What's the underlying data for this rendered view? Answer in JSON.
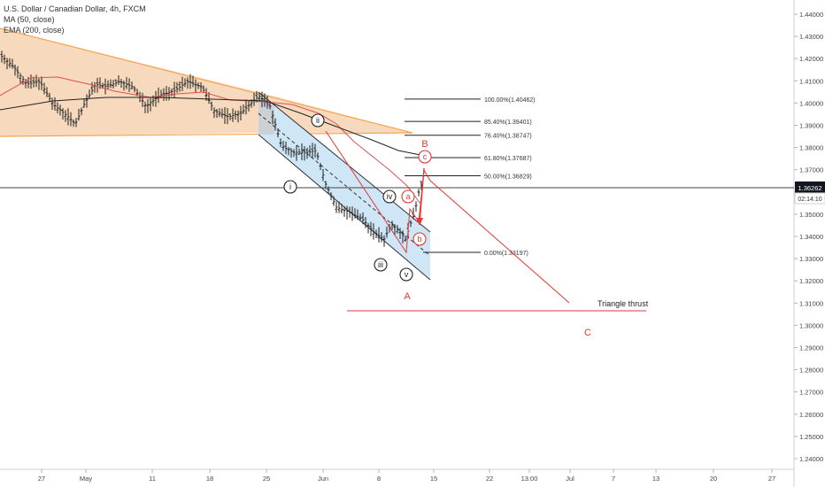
{
  "legend": {
    "symbol": "U.S. Dollar / Canadian Dollar, 4h, FXCM",
    "ma": "MA (50, close)",
    "ema": "EMA (200, close)"
  },
  "chart_data": {
    "type": "candlestick",
    "x_ticks": [
      "27",
      "May",
      "11",
      "18",
      "25",
      "Jun",
      "8",
      "15",
      "22",
      "13:00",
      "Jul",
      "7",
      "13",
      "20",
      "27"
    ],
    "y_ticks": [
      "1.44000",
      "1.43000",
      "1.42000",
      "1.41000",
      "1.40000",
      "1.39000",
      "1.38000",
      "1.37000",
      "1.36000",
      "1.35000",
      "1.34000",
      "1.33000",
      "1.32000",
      "1.31000",
      "1.30000",
      "1.29000",
      "1.28000",
      "1.27000",
      "1.26000",
      "1.25000",
      "1.24000"
    ],
    "ylim": [
      1.2342,
      1.44485
    ],
    "last_price": "1.36262",
    "countdown": "02:14:10",
    "fib_levels": [
      {
        "label": "100.00%(1.40462)",
        "price": 1.40462
      },
      {
        "label": "85.40%(1.39401)",
        "price": 1.39401
      },
      {
        "label": "76.40%(1.38747)",
        "price": 1.38747
      },
      {
        "label": "61.80%(1.37687)",
        "price": 1.37687
      },
      {
        "label": "50.00%(1.36829)",
        "price": 1.36829
      },
      {
        "label": "0.00%(1.33197)",
        "price": 1.33197
      }
    ],
    "wave_labels": [
      "i",
      "ii",
      "iii",
      "iv",
      "v",
      "a",
      "b",
      "c"
    ],
    "abc_labels": [
      "A",
      "B",
      "C"
    ],
    "annotation": "Triangle thrust",
    "colors": {
      "triangle_fill": "#f7d9bd",
      "triangle_line": "#f5a653",
      "channel_fill": "#cfe6f7",
      "ma_line": "#e05050",
      "ema_line": "#222222",
      "wave_red": "#e53935",
      "candle": "#1e1e1e",
      "price_tag": "#131722"
    }
  }
}
